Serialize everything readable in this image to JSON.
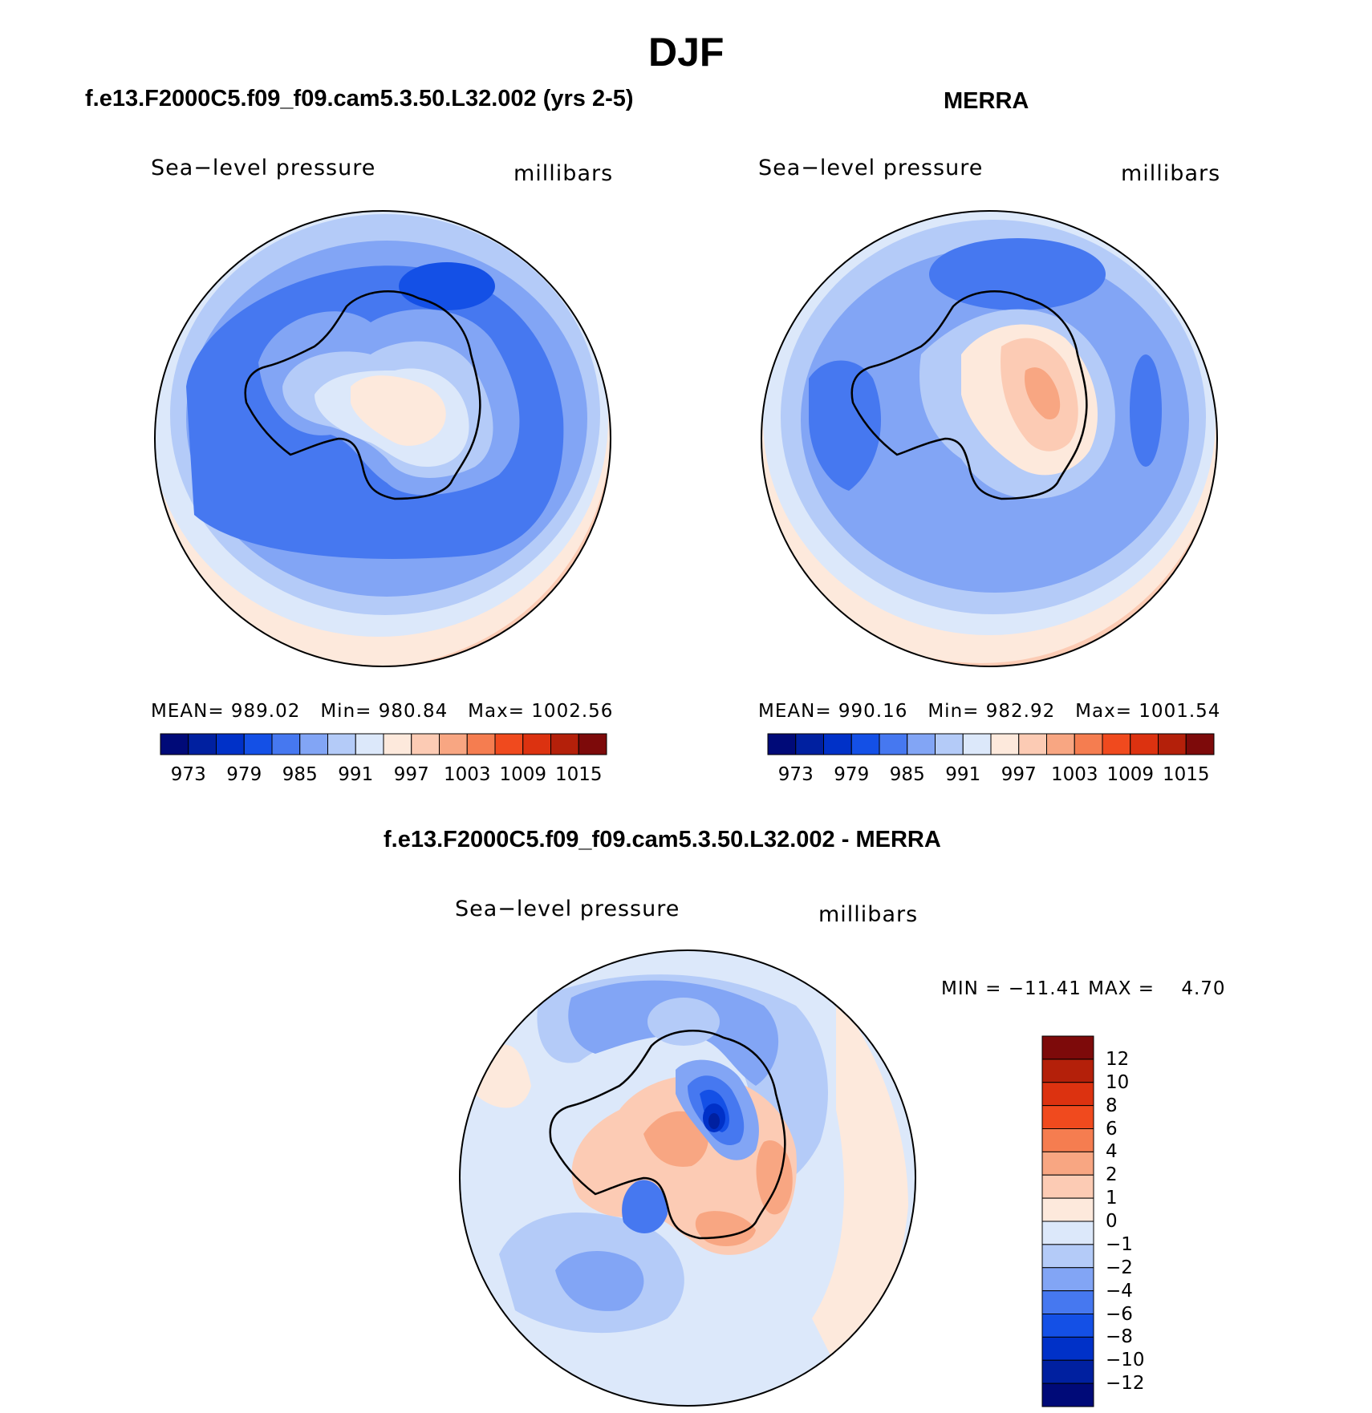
{
  "page_title": "DJF",
  "left_panel": {
    "case_title": "f.e13.F2000C5.f09_f09.cam5.3.50.L32.002 (yrs 2-5)",
    "variable": "Sea−level pressure",
    "units": "millibars",
    "stats": {
      "mean_label": "MEAN=",
      "mean": "989.02",
      "min_label": "Min=",
      "min": "980.84",
      "max_label": "Max=",
      "max": "1002.56"
    }
  },
  "right_panel": {
    "case_title": "MERRA",
    "variable": "Sea−level pressure",
    "units": "millibars",
    "stats": {
      "mean_label": "MEAN=",
      "mean": "990.16",
      "min_label": "Min=",
      "min": "982.92",
      "max_label": "Max=",
      "max": "1001.54"
    }
  },
  "diff_panel": {
    "case_title": "f.e13.F2000C5.f09_f09.cam5.3.50.L32.002 - MERRA",
    "variable": "Sea−level pressure",
    "units": "millibars",
    "minmax_text": "MIN = −11.41 MAX =    4.70"
  },
  "abs_colorbar": {
    "colors": [
      "#000a78",
      "#0020a0",
      "#0031c8",
      "#1450e6",
      "#4678f0",
      "#82a5f5",
      "#b4cbf8",
      "#dce8fa",
      "#fde9dc",
      "#fccbb4",
      "#f8a682",
      "#f57d50",
      "#f04a1e",
      "#dc3210",
      "#b4200a",
      "#7d0a0a"
    ],
    "ticks": [
      "973",
      "979",
      "985",
      "991",
      "997",
      "1003",
      "1009",
      "1015"
    ]
  },
  "diff_colorbar": {
    "colors_top_to_bottom": [
      "#7d0a0a",
      "#b4200a",
      "#dc3210",
      "#f04a1e",
      "#f57d50",
      "#f8a682",
      "#fccbb4",
      "#fde9dc",
      "#dce8fa",
      "#b4cbf8",
      "#82a5f5",
      "#4678f0",
      "#1450e6",
      "#0031c8",
      "#0020a0",
      "#000a78"
    ],
    "ticks": [
      "12",
      "10",
      "8",
      "6",
      "4",
      "2",
      "1",
      "0",
      "−1",
      "−2",
      "−4",
      "−6",
      "−8",
      "−10",
      "−12"
    ]
  }
}
